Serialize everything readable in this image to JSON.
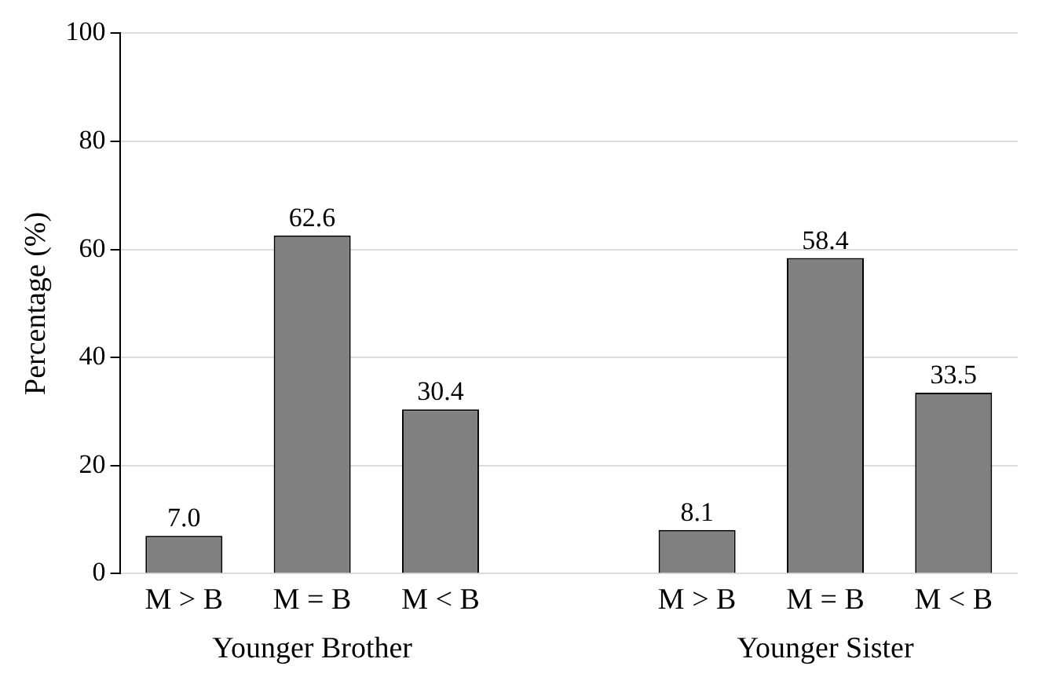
{
  "chart_data": {
    "type": "bar",
    "ylabel": "Percentage (%)",
    "categories": [
      "M > B",
      "M = B",
      "M < B",
      null,
      "M > B",
      "M = B",
      "M < B"
    ],
    "values": [
      7.0,
      62.6,
      30.4,
      null,
      8.1,
      58.4,
      33.5
    ],
    "value_labels": [
      "7.0",
      "62.6",
      "30.4",
      null,
      "8.1",
      "58.4",
      "33.5"
    ],
    "color": "#808080",
    "ylim": [
      0,
      100
    ],
    "yticks": [
      0,
      20,
      40,
      60,
      80,
      100
    ],
    "grid": "y",
    "annotations": [
      "Younger Brother",
      "Younger Sister"
    ]
  }
}
